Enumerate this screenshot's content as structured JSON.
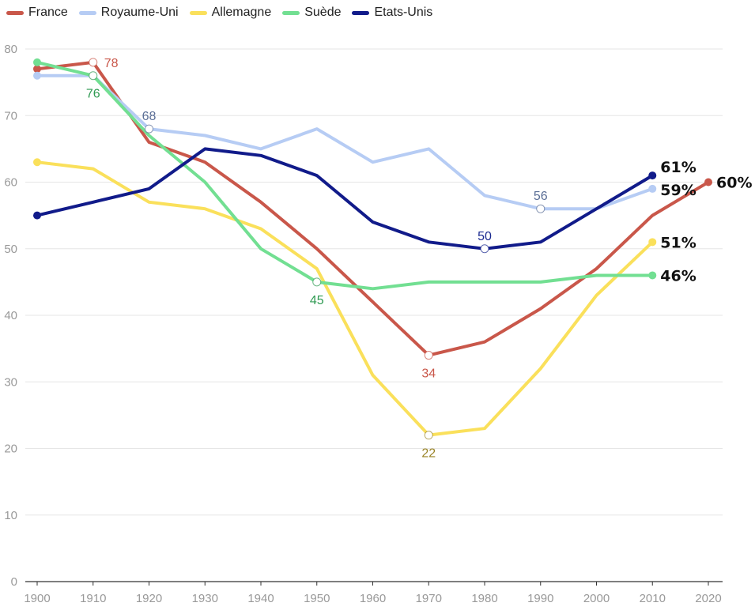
{
  "chart_data": {
    "type": "line",
    "title": "",
    "xlabel": "",
    "ylabel": "",
    "xlim": [
      1900,
      2020
    ],
    "ylim": [
      0,
      80
    ],
    "x_ticks": [
      "1900",
      "1910",
      "1920",
      "1930",
      "1940",
      "1950",
      "1960",
      "1970",
      "1980",
      "1990",
      "2000",
      "2010",
      "2020"
    ],
    "y_ticks": [
      "0",
      "10",
      "20",
      "30",
      "40",
      "50",
      "60",
      "70",
      "80"
    ],
    "grid": true,
    "legend_position": "top-left",
    "series": [
      {
        "name": "France",
        "color": "#c9574a",
        "label_color": "#c9574a",
        "x": [
          1900,
          1910,
          1920,
          1930,
          1940,
          1950,
          1960,
          1970,
          1980,
          1990,
          2000,
          2010,
          2020
        ],
        "values": [
          77,
          78,
          66,
          63,
          57,
          50,
          42,
          34,
          36,
          41,
          47,
          55,
          60
        ],
        "annotations": [
          {
            "x": 1910,
            "y": 78,
            "text": "78",
            "pos": "right"
          },
          {
            "x": 1970,
            "y": 34,
            "text": "34",
            "pos": "below"
          }
        ],
        "end_label": "60%"
      },
      {
        "name": "Royaume-Uni",
        "color": "#b6ccf4",
        "label_color": "#5a6e96",
        "x": [
          1900,
          1910,
          1920,
          1930,
          1940,
          1950,
          1960,
          1970,
          1980,
          1990,
          2000,
          2010
        ],
        "values": [
          76,
          76,
          68,
          67,
          65,
          68,
          63,
          65,
          58,
          56,
          56,
          59
        ],
        "annotations": [
          {
            "x": 1920,
            "y": 68,
            "text": "68",
            "pos": "above"
          },
          {
            "x": 1990,
            "y": 56,
            "text": "56",
            "pos": "above"
          }
        ],
        "end_label": "59%"
      },
      {
        "name": "Allemagne",
        "color": "#fae05b",
        "label_color": "#9a8428",
        "x": [
          1900,
          1910,
          1920,
          1930,
          1940,
          1950,
          1960,
          1970,
          1980,
          1990,
          2000,
          2010
        ],
        "values": [
          63,
          62,
          57,
          56,
          53,
          47,
          31,
          22,
          23,
          32,
          43,
          51
        ],
        "annotations": [
          {
            "x": 1970,
            "y": 22,
            "text": "22",
            "pos": "below"
          }
        ],
        "end_label": "51%"
      },
      {
        "name": "Suède",
        "color": "#72df92",
        "label_color": "#2f9a52",
        "x": [
          1900,
          1910,
          1920,
          1930,
          1940,
          1950,
          1960,
          1970,
          1980,
          1990,
          2000,
          2010
        ],
        "values": [
          78,
          76,
          67,
          60,
          50,
          45,
          44,
          45,
          45,
          45,
          46,
          46
        ],
        "annotations": [
          {
            "x": 1910,
            "y": 76,
            "text": "76",
            "pos": "below"
          },
          {
            "x": 1950,
            "y": 45,
            "text": "45",
            "pos": "below"
          }
        ],
        "end_label": "46%"
      },
      {
        "name": "Etats-Unis",
        "color": "#111b8a",
        "label_color": "#1b2a90",
        "x": [
          1900,
          1910,
          1920,
          1930,
          1940,
          1950,
          1960,
          1970,
          1980,
          1990,
          2000,
          2010
        ],
        "values": [
          55,
          57,
          59,
          65,
          64,
          61,
          54,
          51,
          50,
          51,
          56,
          61
        ],
        "annotations": [
          {
            "x": 1980,
            "y": 50,
            "text": "50",
            "pos": "above"
          }
        ],
        "end_label": "61%"
      }
    ]
  }
}
